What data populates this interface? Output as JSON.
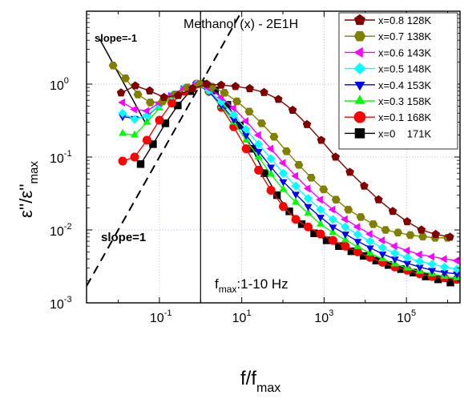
{
  "chart_data": {
    "type": "line",
    "title": "Methanol (x) - 2E1H",
    "xlabel": "f/f",
    "xlabel_sub": "max",
    "ylabel": "ε''/ε''",
    "ylabel_sub": "max",
    "x_scale": "log",
    "y_scale": "log",
    "xlim": [
      0.0017,
      2000000
    ],
    "ylim": [
      0.001,
      10
    ],
    "x_ticks": [
      {
        "value": 0.1,
        "base": "10",
        "exp": "-1"
      },
      {
        "value": 10,
        "base": "10",
        "exp": "1"
      },
      {
        "value": 1000,
        "base": "10",
        "exp": "3"
      },
      {
        "value": 100000,
        "base": "10",
        "exp": "5"
      }
    ],
    "y_ticks": [
      {
        "value": 0.001,
        "base": "10",
        "exp": "-3"
      },
      {
        "value": 0.01,
        "base": "10",
        "exp": "-2"
      },
      {
        "value": 0.1,
        "base": "10",
        "exp": "-1"
      },
      {
        "value": 1,
        "base": "10",
        "exp": "0"
      }
    ],
    "grid": true,
    "legend_position": "top-right",
    "annotations": {
      "slope_neg": "slope=-1",
      "slope_pos": "slope=1",
      "fmax_prefix": "f",
      "fmax_sub": "max",
      "fmax_suffix": ":1-10 Hz"
    },
    "reference_lines": {
      "slope_neg": {
        "x": [
          0.0035,
          0.045
        ],
        "y": [
          4.2,
          0.3
        ]
      },
      "slope_pos": {
        "x": [
          0.0017,
          1.4
        ],
        "y": [
          0.0017,
          1.4
        ]
      },
      "vertical": {
        "x": 1
      }
    },
    "series": [
      {
        "name": "x=0.8 128K",
        "color": "#800000",
        "marker": "pentagon",
        "x": [
          0.0117,
          0.026,
          0.058,
          0.129,
          0.287,
          0.639,
          1.42,
          3.16,
          7.03,
          15.6,
          34.8,
          77.5,
          172,
          384,
          854,
          1900,
          4230,
          9420,
          21000,
          46600,
          104000,
          231000,
          514000,
          1140000
        ],
        "y": [
          0.76,
          0.95,
          0.81,
          0.66,
          0.7,
          0.87,
          1.0,
          0.97,
          0.93,
          0.87,
          0.77,
          0.62,
          0.44,
          0.28,
          0.17,
          0.1,
          0.062,
          0.04,
          0.026,
          0.018,
          0.013,
          0.01,
          0.0087,
          0.008
        ]
      },
      {
        "name": "x=0.7 138K",
        "color": "#808000",
        "marker": "hexagon",
        "x": [
          0.0075,
          0.015,
          0.03,
          0.06,
          0.12,
          0.24,
          0.48,
          0.96,
          1.9,
          3.8,
          7.6,
          15.2,
          30.4,
          60.8,
          122,
          243,
          486,
          973,
          1950,
          3890,
          7780,
          15600,
          31100,
          62200,
          124000,
          249000,
          498000,
          996000
        ],
        "y": [
          1.8,
          1.2,
          0.72,
          0.56,
          0.58,
          0.72,
          0.9,
          1.0,
          0.92,
          0.76,
          0.58,
          0.42,
          0.29,
          0.19,
          0.12,
          0.078,
          0.052,
          0.036,
          0.026,
          0.019,
          0.015,
          0.012,
          0.01,
          0.0092,
          0.0085,
          0.0081,
          0.0078,
          0.0078
        ]
      },
      {
        "name": "x=0.6 143K",
        "color": "#ff00ff",
        "marker": "triangle-left",
        "x": [
          0.0128,
          0.025,
          0.05,
          0.1,
          0.2,
          0.4,
          0.8,
          1.6,
          3.2,
          6.4,
          12.8,
          25.6,
          51.2,
          102,
          205,
          410,
          819,
          1640,
          3280,
          6550,
          13100,
          26200,
          52400,
          105000,
          210000,
          419000,
          839000,
          1680000
        ],
        "y": [
          0.56,
          0.45,
          0.43,
          0.55,
          0.71,
          0.88,
          1.0,
          0.88,
          0.66,
          0.47,
          0.31,
          0.2,
          0.13,
          0.083,
          0.055,
          0.037,
          0.026,
          0.019,
          0.014,
          0.011,
          0.0088,
          0.0072,
          0.006,
          0.0052,
          0.0046,
          0.0043,
          0.004,
          0.0038
        ]
      },
      {
        "name": "x=0.5 148K",
        "color": "#00ffff",
        "marker": "diamond",
        "x": [
          0.0128,
          0.025,
          0.05,
          0.1,
          0.2,
          0.4,
          0.8,
          1.6,
          3.2,
          6.4,
          12.8,
          25.6,
          51.2,
          102,
          205,
          410,
          819,
          1640,
          3280,
          6550,
          13100,
          26200,
          52400,
          105000,
          210000,
          419000,
          839000,
          1680000
        ],
        "y": [
          0.4,
          0.33,
          0.37,
          0.52,
          0.7,
          0.88,
          1.0,
          0.82,
          0.57,
          0.38,
          0.24,
          0.15,
          0.095,
          0.06,
          0.04,
          0.027,
          0.019,
          0.014,
          0.011,
          0.0087,
          0.007,
          0.0057,
          0.0048,
          0.0042,
          0.0037,
          0.0034,
          0.0031,
          0.0029
        ]
      },
      {
        "name": "x=0.4 153K",
        "color": "#0000ff",
        "marker": "triangle-down",
        "x": [
          0.0128,
          0.025,
          0.05,
          0.1,
          0.2,
          0.4,
          0.8,
          1.6,
          3.2,
          6.4,
          12.8,
          25.6,
          51.2,
          102,
          205,
          410,
          819,
          1640,
          3280,
          6550,
          13100,
          26200,
          52400,
          105000,
          210000,
          419000,
          839000,
          1680000
        ],
        "y": [
          0.36,
          0.34,
          0.36,
          0.52,
          0.71,
          0.89,
          1.0,
          0.79,
          0.52,
          0.33,
          0.2,
          0.12,
          0.073,
          0.046,
          0.031,
          0.021,
          0.015,
          0.011,
          0.0088,
          0.007,
          0.0057,
          0.0047,
          0.004,
          0.0035,
          0.0031,
          0.0028,
          0.0026,
          0.0025
        ]
      },
      {
        "name": "x=0.3 158K",
        "color": "#00ff00",
        "marker": "triangle-up",
        "x": [
          0.0128,
          0.025,
          0.05,
          0.1,
          0.2,
          0.4,
          0.8,
          1.6,
          3.2,
          6.4,
          12.8,
          25.6,
          51.2,
          102,
          205,
          410,
          819,
          1640,
          3280,
          6550,
          13100,
          26200,
          52400,
          105000,
          210000,
          419000,
          839000,
          1680000
        ],
        "y": [
          0.21,
          0.2,
          0.3,
          0.47,
          0.68,
          0.87,
          1.0,
          0.78,
          0.5,
          0.3,
          0.17,
          0.1,
          0.058,
          0.036,
          0.024,
          0.017,
          0.012,
          0.0092,
          0.0073,
          0.0059,
          0.0048,
          0.004,
          0.0034,
          0.003,
          0.0027,
          0.0025,
          0.0023,
          0.0022
        ]
      },
      {
        "name": "x=0.1 168K",
        "color": "#ff0000",
        "marker": "circle",
        "x": [
          0.0128,
          0.025,
          0.05,
          0.1,
          0.2,
          0.4,
          0.8,
          1.6,
          3.2,
          6.4,
          12.8,
          25.6,
          51.2,
          102,
          205,
          410,
          819,
          1640,
          3280,
          6550,
          13100,
          26200,
          52400,
          105000,
          210000,
          419000,
          839000,
          1680000
        ],
        "y": [
          0.088,
          0.1,
          0.17,
          0.32,
          0.55,
          0.8,
          1.0,
          0.8,
          0.48,
          0.26,
          0.13,
          0.066,
          0.035,
          0.021,
          0.014,
          0.011,
          0.0088,
          0.0072,
          0.006,
          0.005,
          0.0042,
          0.0036,
          0.0031,
          0.0028,
          0.0025,
          0.0023,
          0.0022,
          0.0021
        ]
      },
      {
        "name": "x=0    171K",
        "color": "#000000",
        "marker": "square",
        "x": [
          0.035,
          0.07,
          0.14,
          0.28,
          0.56,
          1.12,
          2.24,
          4.48,
          8.96,
          17.9,
          35.8,
          71.7,
          143,
          287,
          573,
          1150,
          2290,
          4590,
          9170,
          18400,
          36700,
          73400,
          147000,
          294000,
          587000,
          1170000
        ],
        "y": [
          0.08,
          0.15,
          0.29,
          0.51,
          0.8,
          1.0,
          0.82,
          0.52,
          0.27,
          0.13,
          0.06,
          0.03,
          0.018,
          0.012,
          0.009,
          0.0072,
          0.006,
          0.0051,
          0.0044,
          0.0038,
          0.0033,
          0.0029,
          0.0026,
          0.0023,
          0.0021,
          0.0019
        ]
      }
    ]
  }
}
